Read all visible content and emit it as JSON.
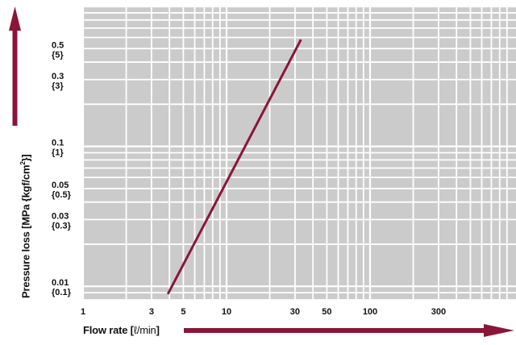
{
  "chart_data": {
    "type": "line",
    "title": "",
    "xlabel_text": "Flow rate [",
    "xlabel_unit": "ℓ/min",
    "xlabel_close": "]",
    "ylabel_main": "Pressure loss [MPa {kgf/cm",
    "ylabel_sup": "2",
    "ylabel_close": "}]",
    "xscale": "log",
    "yscale": "log",
    "xlim": [
      1,
      1000
    ],
    "ylim": [
      0.008,
      1
    ],
    "grid": true,
    "legend": "none",
    "x_ticks": [
      "1",
      "3",
      "5",
      "10",
      "30",
      "50",
      "100",
      "300"
    ],
    "x_tick_values": [
      1,
      3,
      5,
      10,
      30,
      50,
      100,
      300
    ],
    "y_ticks": [
      {
        "value": 0.5,
        "mpa": "0.5",
        "kgf": "{5}"
      },
      {
        "value": 0.3,
        "mpa": "0.3",
        "kgf": "{3}"
      },
      {
        "value": 0.1,
        "mpa": "0.1",
        "kgf": "{1}"
      },
      {
        "value": 0.05,
        "mpa": "0.05",
        "kgf": "{0.5}"
      },
      {
        "value": 0.03,
        "mpa": "0.03",
        "kgf": "{0.3}"
      },
      {
        "value": 0.01,
        "mpa": "0.01",
        "kgf": "{0.1}"
      }
    ],
    "series": [
      {
        "x": [
          3.9,
          33
        ],
        "y": [
          0.0088,
          0.58
        ]
      }
    ]
  },
  "colors": {
    "plot_background": "#cbcbcb",
    "grid": "#ffffff",
    "series": "#8b1538",
    "arrow": "#8b1538"
  }
}
